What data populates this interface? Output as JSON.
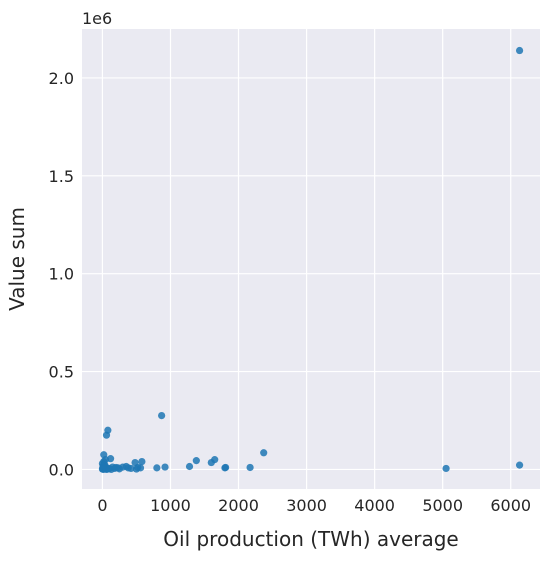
{
  "chart_data": {
    "type": "scatter",
    "title": "",
    "xlabel": "Oil production (TWh) average",
    "ylabel": "Value sum",
    "y_offset_label": "1e6",
    "xlim": [
      -300,
      6430
    ],
    "ylim": [
      -100000,
      2250000
    ],
    "x_ticks": [
      0,
      1000,
      2000,
      3000,
      4000,
      5000,
      6000
    ],
    "x_tick_labels": [
      "0",
      "1000",
      "2000",
      "3000",
      "4000",
      "5000",
      "6000"
    ],
    "y_ticks": [
      0,
      500000,
      1000000,
      1500000,
      2000000
    ],
    "y_tick_labels": [
      "0.0",
      "0.5",
      "1.0",
      "1.5",
      "2.0"
    ],
    "grid": true,
    "colors": {
      "background": "#eaeaf2",
      "grid": "#ffffff",
      "point": "#1f77b4"
    },
    "points": [
      [
        6130,
        2140000
      ],
      [
        870,
        275000
      ],
      [
        80,
        200000
      ],
      [
        60,
        175000
      ],
      [
        2370,
        85000
      ],
      [
        20,
        75000
      ],
      [
        120,
        55000
      ],
      [
        1380,
        45000
      ],
      [
        1650,
        50000
      ],
      [
        1600,
        35000
      ],
      [
        580,
        40000
      ],
      [
        480,
        35000
      ],
      [
        20,
        40000
      ],
      [
        0,
        30000
      ],
      [
        40,
        20000
      ],
      [
        1280,
        15000
      ],
      [
        920,
        12000
      ],
      [
        800,
        8000
      ],
      [
        1800,
        8000
      ],
      [
        1810,
        10000
      ],
      [
        2170,
        10000
      ],
      [
        6130,
        22000
      ],
      [
        5050,
        5000
      ],
      [
        350,
        15000
      ],
      [
        380,
        8000
      ],
      [
        420,
        5000
      ],
      [
        520,
        10000
      ],
      [
        560,
        8000
      ],
      [
        200,
        10000
      ],
      [
        230,
        8000
      ],
      [
        150,
        12000
      ],
      [
        100,
        5000
      ],
      [
        70,
        2000
      ],
      [
        50,
        10000
      ],
      [
        30,
        5000
      ],
      [
        10,
        15000
      ],
      [
        5,
        8000
      ],
      [
        0,
        2000
      ],
      [
        15,
        0
      ],
      [
        60,
        0
      ],
      [
        90,
        3000
      ],
      [
        130,
        0
      ],
      [
        180,
        5000
      ],
      [
        250,
        3000
      ],
      [
        300,
        12000
      ],
      [
        25,
        25000
      ],
      [
        45,
        50000
      ],
      [
        8,
        3000
      ],
      [
        12,
        20000
      ],
      [
        500,
        2000
      ]
    ]
  }
}
